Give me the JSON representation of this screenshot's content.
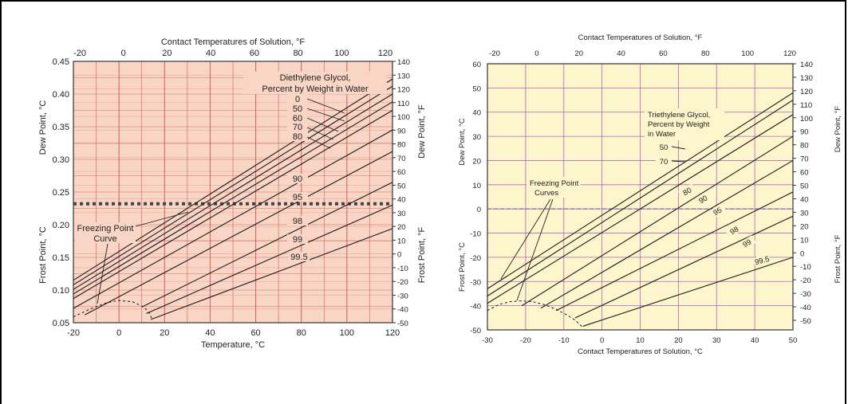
{
  "chart_data": [
    {
      "type": "line",
      "subject": "Diethylene Glycol",
      "top_axis_title": "Contact Temperatures of Solution, °F",
      "xlabel": "Temperature, °C",
      "ylabel_upper": "Dew Point, °C",
      "ylabel_lower": "Frost Point, °C",
      "right_label_upper": "Dew Point, °F",
      "right_label_lower": "Frost Point, °F",
      "x_ticks": [
        "-20",
        "0",
        "20",
        "40",
        "60",
        "80",
        "100",
        "120"
      ],
      "top_ticks": [
        "-20",
        "0",
        "20",
        "40",
        "60",
        "80",
        "100",
        "120"
      ],
      "y_ticks": [
        "0.45",
        "0.40",
        "0.35",
        "0.30",
        "0.25",
        "0.20",
        "0.15",
        "0.10",
        "0.05"
      ],
      "right_ticks": [
        "140",
        "130",
        "120",
        "110",
        "100",
        "90",
        "80",
        "70",
        "60",
        "50",
        "40",
        "30",
        "20",
        "10",
        "0",
        "-10",
        "-20",
        "-30",
        "-40",
        "-50"
      ],
      "xlim": [
        -20,
        120
      ],
      "ylim": [
        0.05,
        0.45
      ],
      "legend_title_line1": "Diethylene Glycol,",
      "legend_title_line2": "Percent by Weight in Water",
      "freezing_label_line1": "Freezing Point",
      "freezing_label_line2": "Curve",
      "dew_frost_boundary": 0.232,
      "series": [
        {
          "name": "0",
          "x": [
            -20,
            120
          ],
          "y": [
            0.115,
            0.423
          ]
        },
        {
          "name": "50",
          "x": [
            -20,
            120
          ],
          "y": [
            0.108,
            0.412
          ]
        },
        {
          "name": "60",
          "x": [
            -20,
            120
          ],
          "y": [
            0.101,
            0.4
          ]
        },
        {
          "name": "70",
          "x": [
            -20,
            120
          ],
          "y": [
            0.094,
            0.388
          ]
        },
        {
          "name": "80",
          "x": [
            -20,
            120
          ],
          "y": [
            0.087,
            0.375
          ]
        },
        {
          "name": "90",
          "x": [
            -20,
            120
          ],
          "y": [
            0.072,
            0.345
          ]
        },
        {
          "name": "95",
          "x": [
            -15,
            120
          ],
          "y": [
            0.062,
            0.312
          ]
        },
        {
          "name": "98",
          "x": [
            10,
            120
          ],
          "y": [
            0.074,
            0.265
          ]
        },
        {
          "name": "99",
          "x": [
            12,
            120
          ],
          "y": [
            0.064,
            0.23
          ]
        },
        {
          "name": "99.5",
          "x": [
            14,
            120
          ],
          "y": [
            0.055,
            0.194
          ]
        }
      ],
      "freezing_curve": {
        "x": [
          -20,
          -12,
          -5,
          0,
          6,
          11,
          13.5,
          14.5
        ],
        "y": [
          0.059,
          0.072,
          0.081,
          0.084,
          0.082,
          0.074,
          0.064,
          0.055
        ]
      },
      "colors": {
        "background": "#f8d5c5",
        "grid": "#c0463e",
        "line": "#1a1a1a"
      }
    },
    {
      "type": "line",
      "subject": "Triethylene Glycol",
      "top_axis_title": "Contact Temperatures of Solution, °F",
      "xlabel": "Contact Temperatures of Solution, °C",
      "ylabel_upper": "Dew Point, °C",
      "ylabel_lower": "Frost Point, °C",
      "right_label_upper": "Dew Point, °F",
      "right_label_lower": "Frost Point, °F",
      "x_ticks": [
        "-30",
        "-20",
        "-10",
        "0",
        "10",
        "20",
        "30",
        "40",
        "50"
      ],
      "top_ticks": [
        "-20",
        "0",
        "20",
        "40",
        "60",
        "80",
        "100",
        "120"
      ],
      "y_ticks": [
        "60",
        "50",
        "40",
        "30",
        "20",
        "10",
        "0",
        "-10",
        "-20",
        "-30",
        "-40",
        "-50"
      ],
      "right_ticks": [
        "140",
        "130",
        "120",
        "110",
        "100",
        "90",
        "80",
        "70",
        "60",
        "50",
        "40",
        "30",
        "20",
        "10",
        "0",
        "-10",
        "-20",
        "-30",
        "-40",
        "-50"
      ],
      "xlim": [
        -30,
        50
      ],
      "ylim": [
        -50,
        60
      ],
      "legend_title_line1": "Triethylene Glycol,",
      "legend_title_line2": "Percent by Weight",
      "legend_title_line3": "in Water",
      "freezing_label_line1": "Freezing Point",
      "freezing_label_line2": "Curves",
      "dew_frost_boundary": 0,
      "series": [
        {
          "name": "50",
          "x": [
            -30,
            50
          ],
          "y": [
            -33,
            48
          ]
        },
        {
          "name": "70",
          "x": [
            -30,
            50
          ],
          "y": [
            -36,
            45
          ]
        },
        {
          "name": "80",
          "x": [
            -30,
            50
          ],
          "y": [
            -39,
            39
          ]
        },
        {
          "name": "90",
          "x": [
            -21,
            50
          ],
          "y": [
            -40,
            30
          ]
        },
        {
          "name": "95",
          "x": [
            -16,
            50
          ],
          "y": [
            -41,
            20
          ]
        },
        {
          "name": "98",
          "x": [
            -12,
            50
          ],
          "y": [
            -42,
            7
          ]
        },
        {
          "name": "99",
          "x": [
            -7,
            50
          ],
          "y": [
            -45,
            -3
          ]
        },
        {
          "name": "99.5",
          "x": [
            -5,
            50
          ],
          "y": [
            -48.5,
            -20
          ]
        }
      ],
      "freezing_curve": {
        "x": [
          -30,
          -27,
          -24,
          -21,
          -18,
          -15,
          -12,
          -9,
          -7,
          -5
        ],
        "y": [
          -42,
          -39.5,
          -38.3,
          -38,
          -38.4,
          -39.6,
          -41.5,
          -44,
          -46,
          -49
        ]
      },
      "colors": {
        "background": "#fdf5cc",
        "grid": "#8c3fae",
        "line": "#1a1a1a"
      }
    }
  ]
}
